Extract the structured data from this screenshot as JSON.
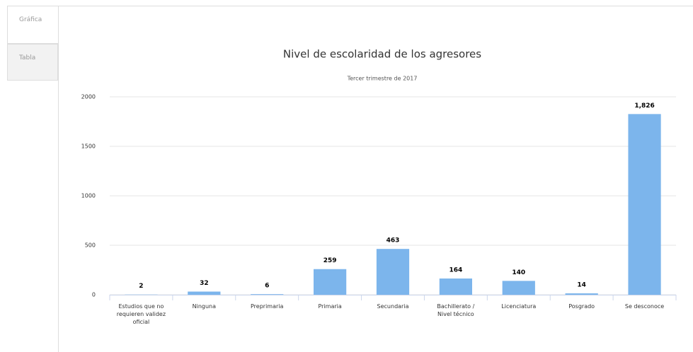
{
  "tabs": [
    "Gráfica",
    "Tabla"
  ],
  "chart_data": {
    "type": "bar",
    "title": "Nivel de escolaridad de los agresores",
    "subtitle": "Tercer trimestre de 2017",
    "categories": [
      "Estudios que no requieren validez oficial",
      "Ninguna",
      "Preprimaria",
      "Primaria",
      "Secundaria",
      "Bachillerato / Nivel técnico",
      "Licenciatura",
      "Posgrado",
      "Se desconoce"
    ],
    "values": [
      2,
      32,
      6,
      259,
      463,
      164,
      140,
      14,
      1826
    ],
    "value_labels": [
      "2",
      "32",
      "6",
      "259",
      "463",
      "164",
      "140",
      "14",
      "1,826"
    ],
    "color": "#7cb5ec",
    "ylim": [
      0,
      2000
    ],
    "yticks": [
      0,
      500,
      1000,
      1500,
      2000
    ],
    "grid": true
  }
}
